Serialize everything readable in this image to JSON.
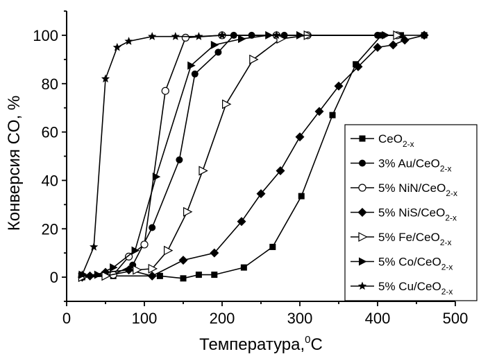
{
  "chart_data": {
    "type": "line",
    "xlabel": "Температура,",
    "xlabel_sup": "0",
    "xlabel_unit": "C",
    "ylabel": "Конверсия CO, %",
    "xlim": [
      0,
      500
    ],
    "ylim": [
      -10,
      110
    ],
    "xticks": [
      0,
      100,
      200,
      300,
      400,
      500
    ],
    "yticks": [
      0,
      20,
      40,
      60,
      80,
      100
    ],
    "grid": false,
    "legend_position": "right",
    "series": [
      {
        "name": "CeO",
        "sub": "2-x",
        "marker": "square",
        "x": [
          20,
          60,
          120,
          150,
          170,
          190,
          228,
          265,
          302,
          342,
          372,
          405,
          430,
          460
        ],
        "y": [
          0,
          0.5,
          0.5,
          -0.5,
          1,
          1,
          4,
          12.5,
          33.5,
          67,
          88,
          100,
          100,
          100
        ]
      },
      {
        "name": "3% Au/CeO",
        "sub": "2-x",
        "marker": "circle",
        "x": [
          20,
          60,
          85,
          110,
          145,
          165,
          195,
          215,
          238,
          280,
          400
        ],
        "y": [
          0.5,
          1,
          5,
          20.5,
          48.5,
          84,
          93,
          100,
          100,
          100,
          100
        ]
      },
      {
        "name": "5% NiN/CeO",
        "sub": "2-x",
        "marker": "circle-open",
        "x": [
          20,
          60,
          80,
          100,
          127,
          153,
          200,
          270,
          310,
          425
        ],
        "y": [
          0.5,
          1,
          8.5,
          13.5,
          77,
          99,
          100,
          100,
          100,
          100
        ]
      },
      {
        "name": "5% NiS/CeO",
        "sub": "2-x",
        "marker": "diamond",
        "x": [
          20,
          30,
          50,
          80,
          110,
          150,
          190,
          225,
          250,
          275,
          300,
          325,
          350,
          375,
          400,
          420,
          435,
          460
        ],
        "y": [
          0,
          0.5,
          2,
          3,
          0.5,
          7,
          10,
          23,
          34.5,
          44,
          58,
          68.5,
          79,
          87,
          95,
          96,
          98,
          100
        ]
      },
      {
        "name": "5% Fe/CeO",
        "sub": "2-x",
        "marker": "triangle-right-open",
        "x": [
          20,
          50,
          90,
          110,
          130,
          155,
          175,
          205,
          240,
          275,
          310,
          425
        ],
        "y": [
          0,
          0.5,
          3,
          3.5,
          11,
          27,
          44,
          71.5,
          90,
          98.5,
          100,
          100
        ]
      },
      {
        "name": "5% Co/CeO",
        "sub": "2-x",
        "marker": "triangle-right",
        "x": [
          20,
          40,
          60,
          88,
          115,
          160,
          190,
          225,
          260,
          300,
          410
        ],
        "y": [
          1,
          1,
          4,
          11,
          41.5,
          87.5,
          96,
          98.5,
          100,
          100,
          100
        ]
      },
      {
        "name": "5% Cu/CeO",
        "sub": "2-x",
        "marker": "star",
        "x": [
          20,
          35,
          50,
          65,
          80,
          110,
          140,
          170,
          200,
          270
        ],
        "y": [
          1,
          12.5,
          82,
          95,
          97.5,
          99.5,
          99.5,
          99.5,
          100,
          100
        ]
      }
    ]
  }
}
